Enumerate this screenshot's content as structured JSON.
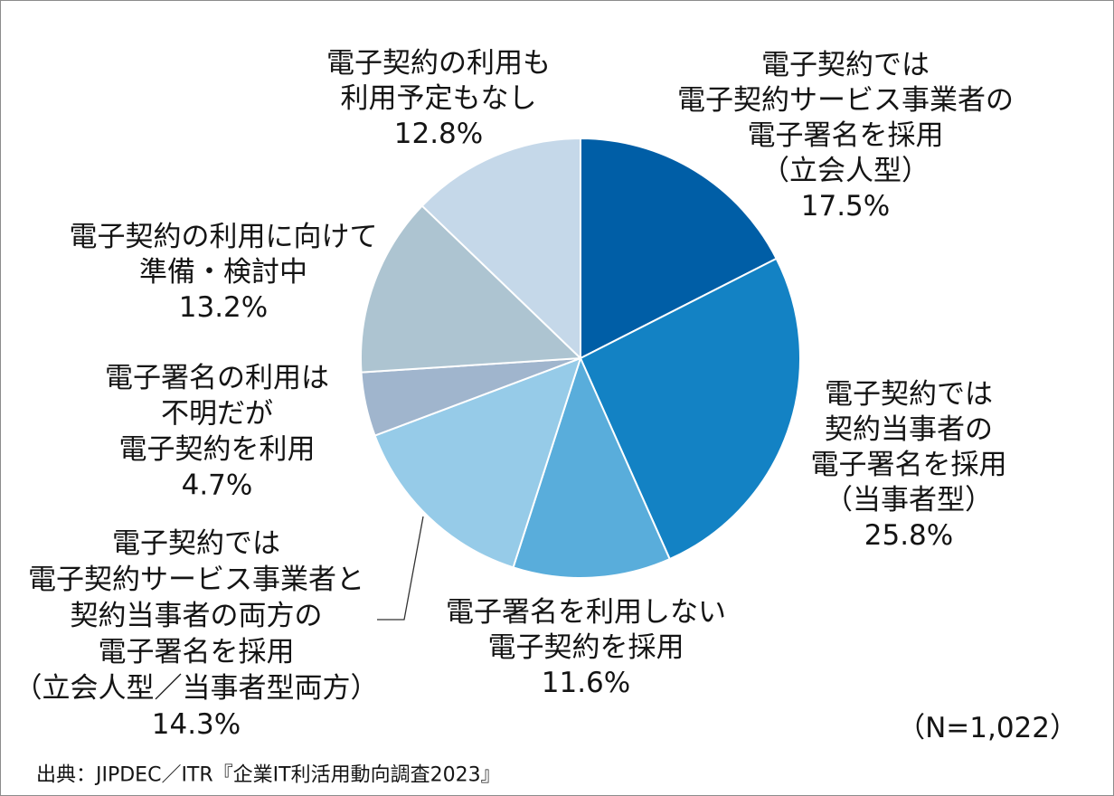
{
  "chart_data": {
    "type": "pie",
    "slices": [
      {
        "label_lines": [
          "電子契約では",
          "電子契約サービス事業者の",
          "電子署名を採用",
          "（立会人型）"
        ],
        "value": 17.5,
        "value_label": "17.5%",
        "color": "#005EA6"
      },
      {
        "label_lines": [
          "電子契約では",
          "契約当事者の",
          "電子署名を採用",
          "（当事者型）"
        ],
        "value": 25.8,
        "value_label": "25.8%",
        "color": "#1382C4"
      },
      {
        "label_lines": [
          "電子署名を利用しない",
          "電子契約を採用"
        ],
        "value": 11.6,
        "value_label": "11.6%",
        "color": "#59ADDB"
      },
      {
        "label_lines": [
          "電子契約では",
          "電子契約サービス事業者と",
          "契約当事者の両方の",
          "電子署名を採用",
          "（立会人型／当事者型両方）"
        ],
        "value": 14.3,
        "value_label": "14.3%",
        "color": "#96CBE8"
      },
      {
        "label_lines": [
          "電子署名の利用は",
          "不明だが",
          "電子契約を利用"
        ],
        "value": 4.7,
        "value_label": "4.7%",
        "color": "#A0B5CD"
      },
      {
        "label_lines": [
          "電子契約の利用に向けて",
          "準備・検討中"
        ],
        "value": 13.2,
        "value_label": "13.2%",
        "color": "#ADC4D1"
      },
      {
        "label_lines": [
          "電子契約の利用も",
          "利用予定もなし"
        ],
        "value": 12.8,
        "value_label": "12.8%",
        "color": "#C5D8E9"
      }
    ],
    "annotations": {
      "sample_size": "（N=1,022）",
      "source": "出典：JIPDEC／ITR『企業IT利活用動向調査2023』"
    }
  }
}
